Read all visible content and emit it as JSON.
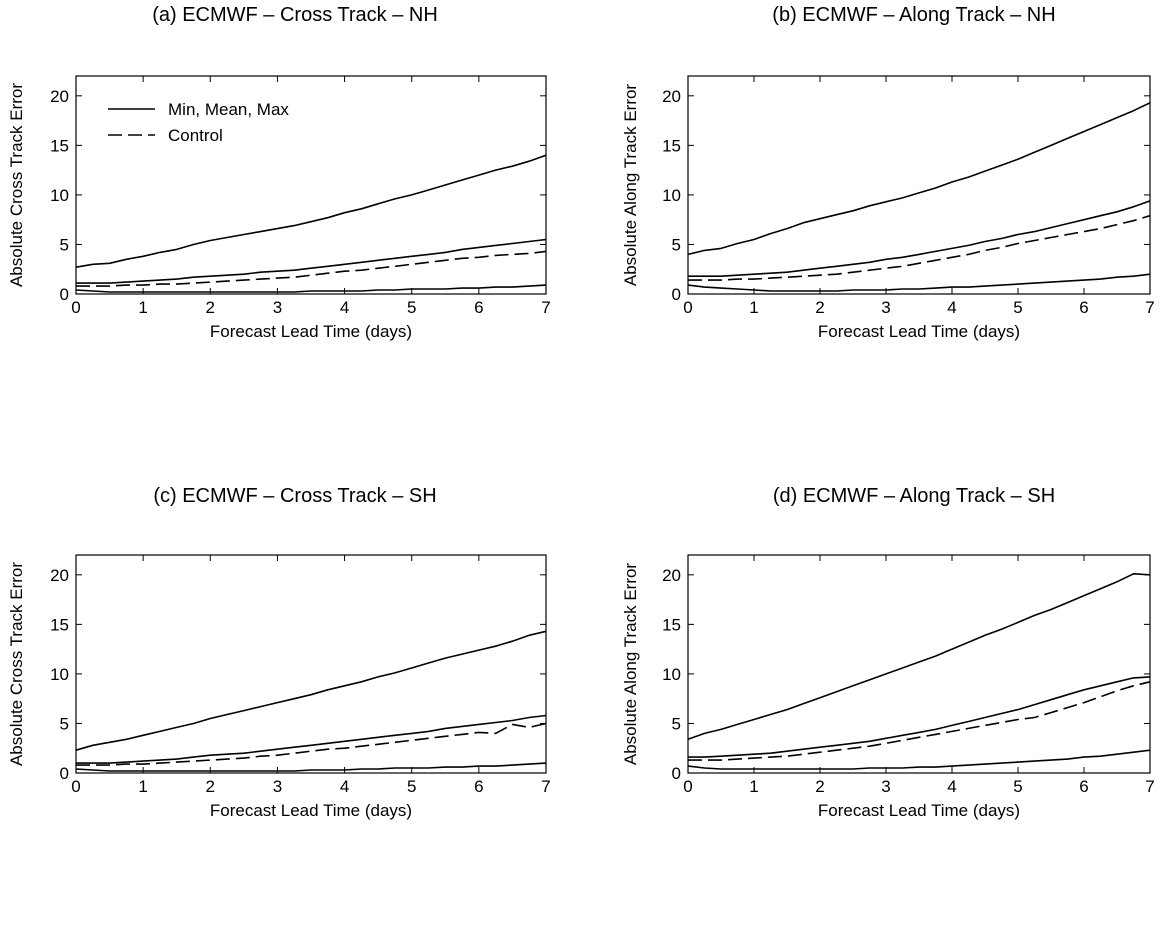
{
  "figure": {
    "legend": [
      {
        "label": "Min, Mean, Max",
        "style": "solid"
      },
      {
        "label": "Control",
        "style": "dashed"
      }
    ],
    "line_color": "#000000",
    "background": "#ffffff"
  },
  "chart_data": [
    {
      "type": "line",
      "title": "(a) ECMWF – Cross Track – NH",
      "xlabel": "Forecast Lead Time (days)",
      "ylabel": "Absolute Cross Track Error",
      "xlim": [
        0,
        7
      ],
      "ylim": [
        0,
        22
      ],
      "xticks": [
        0,
        1,
        2,
        3,
        4,
        5,
        6,
        7
      ],
      "yticks": [
        0,
        5,
        10,
        15,
        20
      ],
      "legend": "top-left",
      "x": [
        0,
        0.25,
        0.5,
        0.75,
        1,
        1.25,
        1.5,
        1.75,
        2,
        2.25,
        2.5,
        2.75,
        3,
        3.25,
        3.5,
        3.75,
        4,
        4.25,
        4.5,
        4.75,
        5,
        5.25,
        5.5,
        5.75,
        6,
        6.25,
        6.5,
        6.75,
        7
      ],
      "series": [
        {
          "name": "Max",
          "style": "solid",
          "values": [
            2.7,
            3.0,
            3.1,
            3.5,
            3.8,
            4.2,
            4.5,
            5.0,
            5.4,
            5.7,
            6.0,
            6.3,
            6.6,
            6.9,
            7.3,
            7.7,
            8.2,
            8.6,
            9.1,
            9.6,
            10.0,
            10.5,
            11.0,
            11.5,
            12.0,
            12.5,
            12.9,
            13.4,
            14.0
          ]
        },
        {
          "name": "Mean",
          "style": "solid",
          "values": [
            1.1,
            1.1,
            1.1,
            1.2,
            1.3,
            1.4,
            1.5,
            1.7,
            1.8,
            1.9,
            2.0,
            2.2,
            2.3,
            2.4,
            2.6,
            2.8,
            3.0,
            3.2,
            3.4,
            3.6,
            3.8,
            4.0,
            4.2,
            4.5,
            4.7,
            4.9,
            5.1,
            5.3,
            5.5
          ]
        },
        {
          "name": "Control",
          "style": "dashed",
          "values": [
            0.8,
            0.8,
            0.8,
            0.9,
            0.9,
            1.0,
            1.0,
            1.1,
            1.2,
            1.3,
            1.4,
            1.5,
            1.6,
            1.7,
            1.9,
            2.1,
            2.3,
            2.4,
            2.6,
            2.8,
            3.0,
            3.2,
            3.4,
            3.6,
            3.7,
            3.9,
            4.0,
            4.1,
            4.3
          ]
        },
        {
          "name": "Min",
          "style": "solid",
          "values": [
            0.4,
            0.3,
            0.2,
            0.2,
            0.2,
            0.2,
            0.2,
            0.2,
            0.2,
            0.2,
            0.2,
            0.2,
            0.2,
            0.2,
            0.3,
            0.3,
            0.3,
            0.3,
            0.4,
            0.4,
            0.5,
            0.5,
            0.5,
            0.6,
            0.6,
            0.7,
            0.7,
            0.8,
            0.9
          ]
        }
      ]
    },
    {
      "type": "line",
      "title": "(b) ECMWF – Along Track – NH",
      "xlabel": "Forecast Lead Time (days)",
      "ylabel": "Absolute Along Track Error",
      "xlim": [
        0,
        7
      ],
      "ylim": [
        0,
        22
      ],
      "xticks": [
        0,
        1,
        2,
        3,
        4,
        5,
        6,
        7
      ],
      "yticks": [
        0,
        5,
        10,
        15,
        20
      ],
      "x": [
        0,
        0.25,
        0.5,
        0.75,
        1,
        1.25,
        1.5,
        1.75,
        2,
        2.25,
        2.5,
        2.75,
        3,
        3.25,
        3.5,
        3.75,
        4,
        4.25,
        4.5,
        4.75,
        5,
        5.25,
        5.5,
        5.75,
        6,
        6.25,
        6.5,
        6.75,
        7
      ],
      "series": [
        {
          "name": "Max",
          "style": "solid",
          "values": [
            4.0,
            4.4,
            4.6,
            5.1,
            5.5,
            6.1,
            6.6,
            7.2,
            7.6,
            8.0,
            8.4,
            8.9,
            9.3,
            9.7,
            10.2,
            10.7,
            11.3,
            11.8,
            12.4,
            13.0,
            13.6,
            14.3,
            15.0,
            15.7,
            16.4,
            17.1,
            17.8,
            18.5,
            19.3
          ]
        },
        {
          "name": "Mean",
          "style": "solid",
          "values": [
            1.8,
            1.8,
            1.8,
            1.9,
            2.0,
            2.1,
            2.2,
            2.4,
            2.6,
            2.8,
            3.0,
            3.2,
            3.5,
            3.7,
            4.0,
            4.3,
            4.6,
            4.9,
            5.3,
            5.6,
            6.0,
            6.3,
            6.7,
            7.1,
            7.5,
            7.9,
            8.3,
            8.8,
            9.4
          ]
        },
        {
          "name": "Control",
          "style": "dashed",
          "values": [
            1.4,
            1.4,
            1.4,
            1.5,
            1.5,
            1.6,
            1.7,
            1.8,
            1.9,
            2.0,
            2.2,
            2.4,
            2.6,
            2.8,
            3.1,
            3.4,
            3.7,
            4.0,
            4.4,
            4.7,
            5.1,
            5.4,
            5.7,
            6.0,
            6.3,
            6.6,
            7.0,
            7.4,
            7.9
          ]
        },
        {
          "name": "Min",
          "style": "solid",
          "values": [
            0.9,
            0.7,
            0.6,
            0.5,
            0.4,
            0.3,
            0.3,
            0.3,
            0.3,
            0.3,
            0.4,
            0.4,
            0.4,
            0.5,
            0.5,
            0.6,
            0.7,
            0.7,
            0.8,
            0.9,
            1.0,
            1.1,
            1.2,
            1.3,
            1.4,
            1.5,
            1.7,
            1.8,
            2.0
          ]
        }
      ]
    },
    {
      "type": "line",
      "title": "(c) ECMWF – Cross Track – SH",
      "xlabel": "Forecast Lead Time (days)",
      "ylabel": "Absolute Cross Track Error",
      "xlim": [
        0,
        7
      ],
      "ylim": [
        0,
        22
      ],
      "xticks": [
        0,
        1,
        2,
        3,
        4,
        5,
        6,
        7
      ],
      "yticks": [
        0,
        5,
        10,
        15,
        20
      ],
      "x": [
        0,
        0.25,
        0.5,
        0.75,
        1,
        1.25,
        1.5,
        1.75,
        2,
        2.25,
        2.5,
        2.75,
        3,
        3.25,
        3.5,
        3.75,
        4,
        4.25,
        4.5,
        4.75,
        5,
        5.25,
        5.5,
        5.75,
        6,
        6.25,
        6.5,
        6.75,
        7
      ],
      "series": [
        {
          "name": "Max",
          "style": "solid",
          "values": [
            2.3,
            2.8,
            3.1,
            3.4,
            3.8,
            4.2,
            4.6,
            5.0,
            5.5,
            5.9,
            6.3,
            6.7,
            7.1,
            7.5,
            7.9,
            8.4,
            8.8,
            9.2,
            9.7,
            10.1,
            10.6,
            11.1,
            11.6,
            12.0,
            12.4,
            12.8,
            13.3,
            13.9,
            14.3
          ]
        },
        {
          "name": "Mean",
          "style": "solid",
          "values": [
            1.0,
            1.0,
            1.0,
            1.1,
            1.2,
            1.3,
            1.4,
            1.6,
            1.8,
            1.9,
            2.0,
            2.2,
            2.4,
            2.6,
            2.8,
            3.0,
            3.2,
            3.4,
            3.6,
            3.8,
            4.0,
            4.2,
            4.5,
            4.7,
            4.9,
            5.1,
            5.3,
            5.6,
            5.8
          ]
        },
        {
          "name": "Control",
          "style": "dashed",
          "values": [
            0.8,
            0.8,
            0.8,
            0.9,
            0.9,
            1.0,
            1.1,
            1.2,
            1.3,
            1.4,
            1.5,
            1.7,
            1.8,
            2.0,
            2.2,
            2.4,
            2.5,
            2.7,
            2.9,
            3.1,
            3.3,
            3.5,
            3.7,
            3.9,
            4.1,
            4.0,
            4.9,
            4.6,
            5.0
          ]
        },
        {
          "name": "Min",
          "style": "solid",
          "values": [
            0.4,
            0.3,
            0.2,
            0.2,
            0.2,
            0.2,
            0.2,
            0.2,
            0.2,
            0.2,
            0.2,
            0.2,
            0.2,
            0.2,
            0.3,
            0.3,
            0.3,
            0.4,
            0.4,
            0.5,
            0.5,
            0.5,
            0.6,
            0.6,
            0.7,
            0.7,
            0.8,
            0.9,
            1.0
          ]
        }
      ]
    },
    {
      "type": "line",
      "title": "(d) ECMWF – Along Track – SH",
      "xlabel": "Forecast Lead Time (days)",
      "ylabel": "Absolute Along Track Error",
      "xlim": [
        0,
        7
      ],
      "ylim": [
        0,
        22
      ],
      "xticks": [
        0,
        1,
        2,
        3,
        4,
        5,
        6,
        7
      ],
      "yticks": [
        0,
        5,
        10,
        15,
        20
      ],
      "x": [
        0,
        0.25,
        0.5,
        0.75,
        1,
        1.25,
        1.5,
        1.75,
        2,
        2.25,
        2.5,
        2.75,
        3,
        3.25,
        3.5,
        3.75,
        4,
        4.25,
        4.5,
        4.75,
        5,
        5.25,
        5.5,
        5.75,
        6,
        6.25,
        6.5,
        6.75,
        7
      ],
      "series": [
        {
          "name": "Max",
          "style": "solid",
          "values": [
            3.4,
            4.0,
            4.4,
            4.9,
            5.4,
            5.9,
            6.4,
            7.0,
            7.6,
            8.2,
            8.8,
            9.4,
            10.0,
            10.6,
            11.2,
            11.8,
            12.5,
            13.2,
            13.9,
            14.5,
            15.2,
            15.9,
            16.5,
            17.2,
            17.9,
            18.6,
            19.3,
            20.1,
            20.0
          ]
        },
        {
          "name": "Mean",
          "style": "solid",
          "values": [
            1.6,
            1.6,
            1.7,
            1.8,
            1.9,
            2.0,
            2.2,
            2.4,
            2.6,
            2.8,
            3.0,
            3.2,
            3.5,
            3.8,
            4.1,
            4.4,
            4.8,
            5.2,
            5.6,
            6.0,
            6.4,
            6.9,
            7.4,
            7.9,
            8.4,
            8.8,
            9.2,
            9.6,
            9.7
          ]
        },
        {
          "name": "Control",
          "style": "dashed",
          "values": [
            1.3,
            1.3,
            1.3,
            1.4,
            1.5,
            1.6,
            1.7,
            1.9,
            2.1,
            2.3,
            2.5,
            2.7,
            3.0,
            3.3,
            3.6,
            3.9,
            4.2,
            4.5,
            4.8,
            5.1,
            5.4,
            5.6,
            6.1,
            6.6,
            7.1,
            7.7,
            8.3,
            8.8,
            9.2
          ]
        },
        {
          "name": "Min",
          "style": "solid",
          "values": [
            0.7,
            0.5,
            0.4,
            0.4,
            0.4,
            0.4,
            0.4,
            0.4,
            0.4,
            0.4,
            0.4,
            0.5,
            0.5,
            0.5,
            0.6,
            0.6,
            0.7,
            0.8,
            0.9,
            1.0,
            1.1,
            1.2,
            1.3,
            1.4,
            1.6,
            1.7,
            1.9,
            2.1,
            2.3
          ]
        }
      ]
    }
  ]
}
